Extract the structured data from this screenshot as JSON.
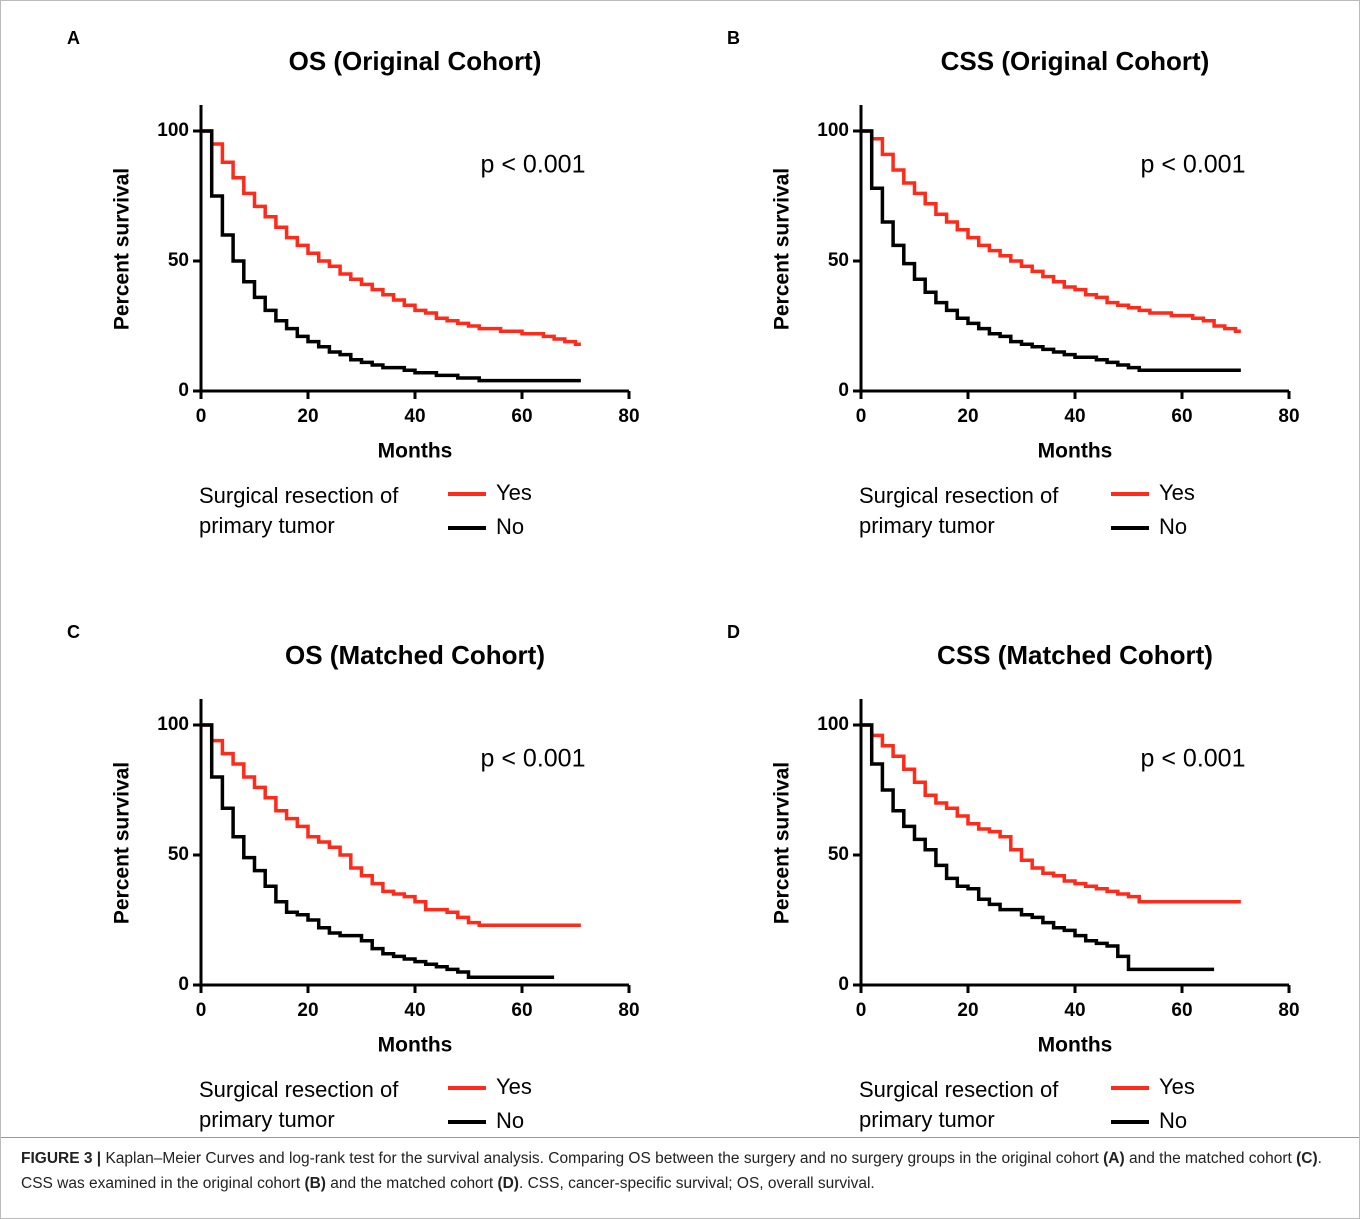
{
  "chart_data": [
    {
      "type": "step",
      "panel_label": "A",
      "title": "OS (Original Cohort)",
      "annotation": "p < 0.001",
      "xlabel": "Months",
      "ylabel": "Percent survival",
      "legend_title": [
        "Surgical resection of",
        "primary tumor"
      ],
      "xlim": [
        0,
        80
      ],
      "ylim": [
        0,
        110
      ],
      "xticks": [
        0,
        20,
        40,
        60,
        80
      ],
      "yticks": [
        0,
        50,
        100
      ],
      "x": [
        0,
        2,
        4,
        6,
        8,
        10,
        12,
        14,
        16,
        18,
        20,
        22,
        24,
        26,
        28,
        30,
        32,
        34,
        36,
        38,
        40,
        42,
        44,
        46,
        48,
        50,
        52,
        54,
        56,
        58,
        60,
        62,
        64,
        66,
        68,
        70,
        71
      ],
      "series": [
        {
          "name": "Yes",
          "color": "#ff2a1a",
          "values": [
            100,
            95,
            88,
            82,
            76,
            71,
            67,
            63,
            59,
            56,
            53,
            50,
            48,
            45,
            43,
            41,
            39,
            37,
            35,
            33,
            31,
            30,
            28,
            27,
            26,
            25,
            24,
            24,
            23,
            23,
            22,
            22,
            21,
            20,
            19,
            18,
            18
          ]
        },
        {
          "name": "No",
          "color": "#000000",
          "values": [
            100,
            75,
            60,
            50,
            42,
            36,
            31,
            27,
            24,
            21,
            19,
            17,
            15,
            14,
            12,
            11,
            10,
            9,
            9,
            8,
            7,
            7,
            6,
            6,
            5,
            5,
            4,
            4,
            4,
            4,
            4,
            4,
            4,
            4,
            4,
            4,
            4
          ]
        }
      ]
    },
    {
      "type": "step",
      "panel_label": "B",
      "title": "CSS (Original Cohort)",
      "annotation": "p < 0.001",
      "xlabel": "Months",
      "ylabel": "Percent survival",
      "legend_title": [
        "Surgical resection of",
        "primary tumor"
      ],
      "xlim": [
        0,
        80
      ],
      "ylim": [
        0,
        110
      ],
      "xticks": [
        0,
        20,
        40,
        60,
        80
      ],
      "yticks": [
        0,
        50,
        100
      ],
      "x": [
        0,
        2,
        4,
        6,
        8,
        10,
        12,
        14,
        16,
        18,
        20,
        22,
        24,
        26,
        28,
        30,
        32,
        34,
        36,
        38,
        40,
        42,
        44,
        46,
        48,
        50,
        52,
        54,
        56,
        58,
        60,
        62,
        64,
        66,
        68,
        70,
        71
      ],
      "series": [
        {
          "name": "Yes",
          "color": "#ff2a1a",
          "values": [
            100,
            97,
            91,
            85,
            80,
            76,
            72,
            68,
            65,
            62,
            59,
            56,
            54,
            52,
            50,
            48,
            46,
            44,
            42,
            40,
            39,
            37,
            36,
            34,
            33,
            32,
            31,
            30,
            30,
            29,
            29,
            28,
            27,
            25,
            24,
            23,
            23
          ]
        },
        {
          "name": "No",
          "color": "#000000",
          "values": [
            100,
            78,
            65,
            56,
            49,
            43,
            38,
            34,
            31,
            28,
            26,
            24,
            22,
            21,
            19,
            18,
            17,
            16,
            15,
            14,
            13,
            13,
            12,
            11,
            10,
            9,
            8,
            8,
            8,
            8,
            8,
            8,
            8,
            8,
            8,
            8,
            8
          ]
        }
      ]
    },
    {
      "type": "step",
      "panel_label": "C",
      "title": "OS (Matched Cohort)",
      "annotation": "p < 0.001",
      "xlabel": "Months",
      "ylabel": "Percent survival",
      "legend_title": [
        "Surgical resection of",
        "primary tumor"
      ],
      "xlim": [
        0,
        80
      ],
      "ylim": [
        0,
        110
      ],
      "xticks": [
        0,
        20,
        40,
        60,
        80
      ],
      "yticks": [
        0,
        50,
        100
      ],
      "x": [
        0,
        2,
        4,
        6,
        8,
        10,
        12,
        14,
        16,
        18,
        20,
        22,
        24,
        26,
        28,
        30,
        32,
        34,
        36,
        38,
        40,
        42,
        44,
        46,
        48,
        50,
        52,
        54,
        56,
        58,
        60,
        62,
        64,
        66,
        68,
        70,
        71
      ],
      "series": [
        {
          "name": "Yes",
          "color": "#ff2a1a",
          "values": [
            100,
            94,
            89,
            85,
            80,
            76,
            72,
            67,
            64,
            61,
            57,
            55,
            53,
            50,
            45,
            42,
            39,
            36,
            35,
            34,
            32,
            29,
            29,
            28,
            26,
            24,
            23,
            23,
            23,
            23,
            23,
            23,
            23,
            23,
            23,
            23,
            23
          ]
        },
        {
          "name": "No",
          "color": "#000000",
          "values": [
            100,
            80,
            68,
            57,
            49,
            44,
            38,
            32,
            28,
            27,
            25,
            22,
            20,
            19,
            19,
            17,
            14,
            12,
            11,
            10,
            9,
            8,
            7,
            6,
            5,
            3,
            3,
            3,
            3,
            3,
            3,
            3,
            3,
            3,
            null,
            null,
            null
          ]
        }
      ]
    },
    {
      "type": "step",
      "panel_label": "D",
      "title": "CSS (Matched Cohort)",
      "annotation": "p < 0.001",
      "xlabel": "Months",
      "ylabel": "Percent survival",
      "legend_title": [
        "Surgical resection of",
        "primary tumor"
      ],
      "xlim": [
        0,
        80
      ],
      "ylim": [
        0,
        110
      ],
      "xticks": [
        0,
        20,
        40,
        60,
        80
      ],
      "yticks": [
        0,
        50,
        100
      ],
      "x": [
        0,
        2,
        4,
        6,
        8,
        10,
        12,
        14,
        16,
        18,
        20,
        22,
        24,
        26,
        28,
        30,
        32,
        34,
        36,
        38,
        40,
        42,
        44,
        46,
        48,
        50,
        52,
        54,
        56,
        58,
        60,
        62,
        64,
        66,
        68,
        70,
        71
      ],
      "series": [
        {
          "name": "Yes",
          "color": "#ff2a1a",
          "values": [
            100,
            96,
            92,
            88,
            83,
            78,
            73,
            70,
            68,
            65,
            62,
            60,
            59,
            57,
            52,
            48,
            45,
            43,
            42,
            40,
            39,
            38,
            37,
            36,
            35,
            34,
            32,
            32,
            32,
            32,
            32,
            32,
            32,
            32,
            32,
            32,
            32
          ]
        },
        {
          "name": "No",
          "color": "#000000",
          "values": [
            100,
            85,
            75,
            67,
            61,
            56,
            52,
            46,
            41,
            38,
            37,
            33,
            31,
            29,
            29,
            27,
            26,
            24,
            22,
            21,
            19,
            17,
            16,
            15,
            11,
            6,
            6,
            6,
            6,
            6,
            6,
            6,
            6,
            6,
            null,
            null,
            null
          ]
        }
      ]
    }
  ],
  "caption": [
    {
      "text": "FIGURE 3 |",
      "bold": true
    },
    {
      "text": " Kaplan–Meier Curves and log-rank test for the survival analysis. Comparing OS between the surgery and no surgery groups in the original cohort ",
      "bold": false
    },
    {
      "text": "(A)",
      "bold": true
    },
    {
      "text": " and the matched cohort ",
      "bold": false
    },
    {
      "text": "(C)",
      "bold": true
    },
    {
      "text": ". CSS was examined in the original cohort ",
      "bold": false
    },
    {
      "text": "(B)",
      "bold": true
    },
    {
      "text": " and the matched cohort ",
      "bold": false
    },
    {
      "text": "(D)",
      "bold": true
    },
    {
      "text": ". CSS, cancer-specific survival; OS, overall survival.",
      "bold": false
    }
  ]
}
